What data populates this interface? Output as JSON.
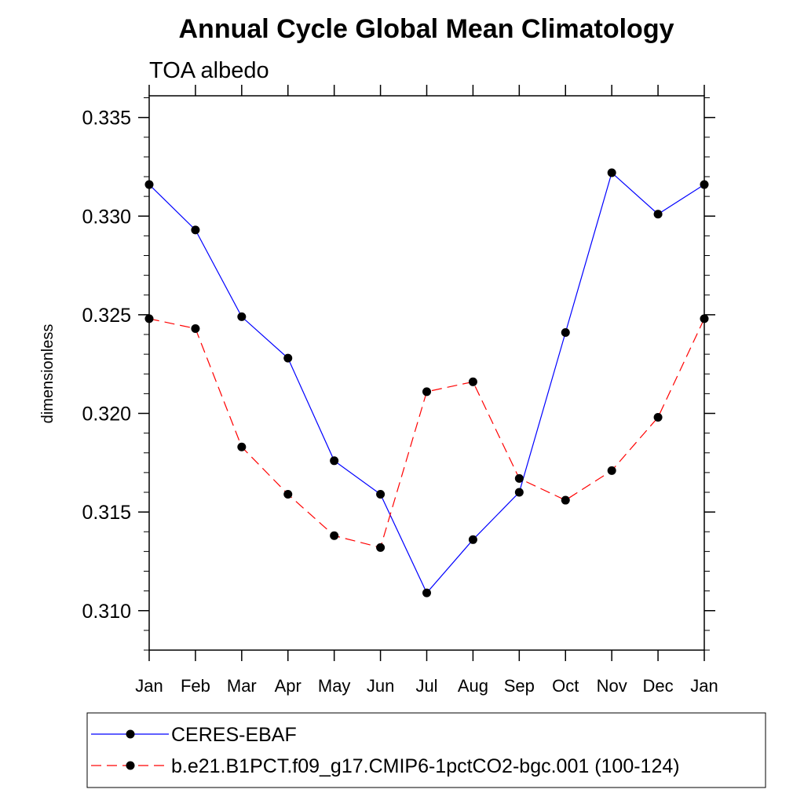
{
  "chart_data": {
    "type": "line",
    "title": "Annual Cycle Global Mean Climatology",
    "subtitle": "TOA albedo",
    "xlabel": "",
    "ylabel": "dimensionless",
    "categories": [
      "Jan",
      "Feb",
      "Mar",
      "Apr",
      "May",
      "Jun",
      "Jul",
      "Aug",
      "Sep",
      "Oct",
      "Nov",
      "Dec",
      "Jan"
    ],
    "ylim": [
      0.308,
      0.3361
    ],
    "yticks": [
      "0.310",
      "0.315",
      "0.320",
      "0.325",
      "0.330",
      "0.335"
    ],
    "ytick_values": [
      0.31,
      0.315,
      0.32,
      0.325,
      0.33,
      0.335
    ],
    "series": [
      {
        "name": "CERES-EBAF",
        "color": "#0000ff",
        "line_style": "solid",
        "marker": "circle",
        "values": [
          0.3316,
          0.3293,
          0.3249,
          0.3228,
          0.3176,
          0.3159,
          0.3109,
          0.3136,
          0.316,
          0.3241,
          0.3322,
          0.3301,
          0.3316
        ]
      },
      {
        "name": "b.e21.B1PCT.f09_g17.CMIP6-1pctCO2-bgc.001 (100-124)",
        "color": "#ff0000",
        "line_style": "dashed",
        "marker": "circle",
        "values": [
          0.3248,
          0.3243,
          0.3183,
          0.3159,
          0.3138,
          0.3132,
          0.3211,
          0.3216,
          0.3167,
          0.3156,
          0.3171,
          0.3198,
          0.3248
        ]
      }
    ],
    "legend_position": "bottom"
  }
}
